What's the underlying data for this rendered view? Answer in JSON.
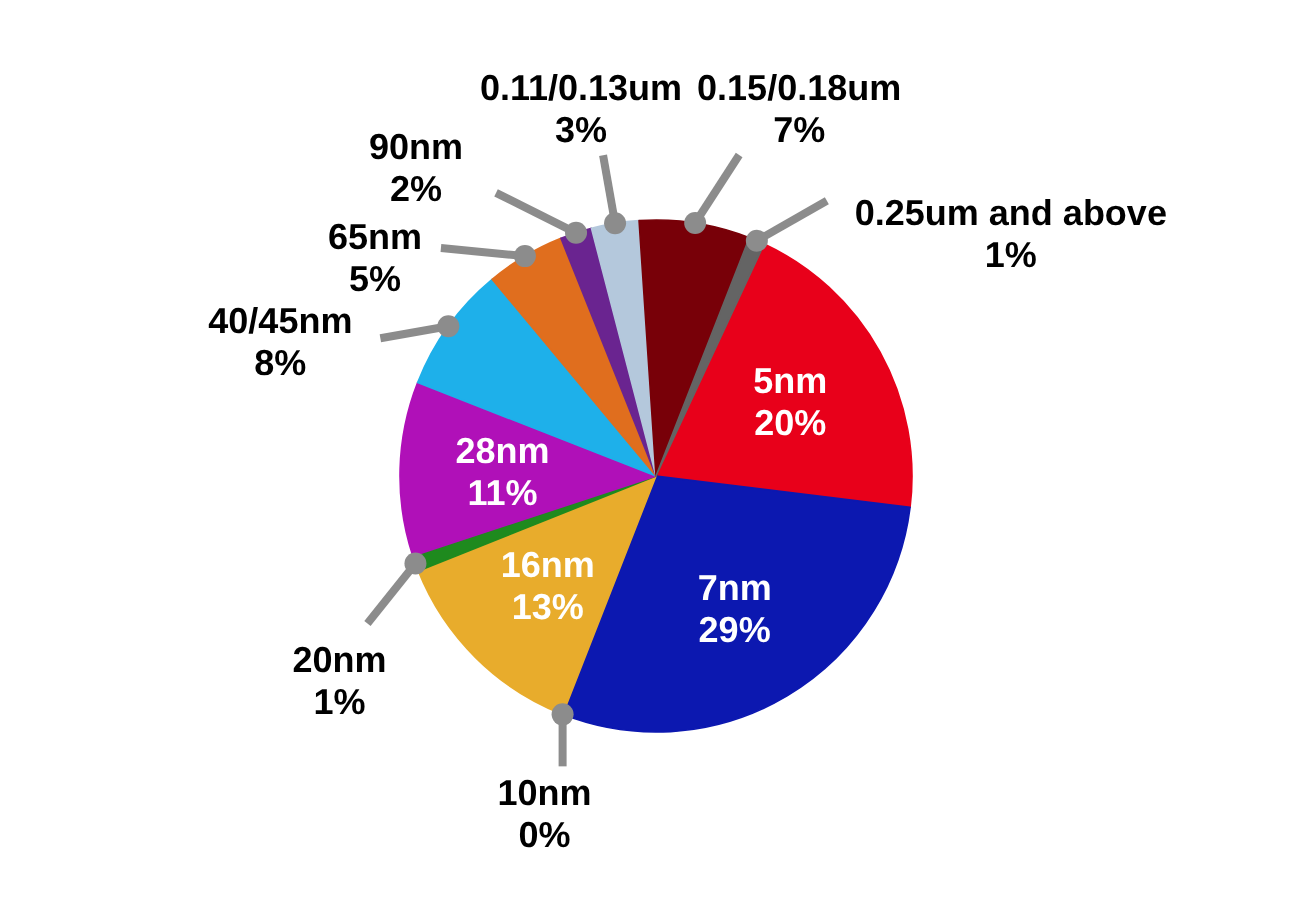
{
  "chart_data": {
    "type": "pie",
    "categories": [
      "5nm",
      "7nm",
      "10nm",
      "16nm",
      "20nm",
      "28nm",
      "40/45nm",
      "65nm",
      "90nm",
      "0.11/0.13um",
      "0.15/0.18um",
      "0.25um and above"
    ],
    "values": [
      20,
      29,
      0,
      13,
      1,
      11,
      8,
      5,
      2,
      3,
      7,
      1
    ],
    "value_labels": [
      "20%",
      "29%",
      "0%",
      "13%",
      "1%",
      "11%",
      "8%",
      "5%",
      "2%",
      "3%",
      "7%",
      "1%"
    ],
    "colors": [
      "#e8001a",
      "#0c18b0",
      "#2a8a1e",
      "#e8ac2c",
      "#1e8a1e",
      "#b010b8",
      "#1eb0ea",
      "#e06e1e",
      "#6a2490",
      "#b4c8dc",
      "#780008",
      "#646464"
    ]
  }
}
